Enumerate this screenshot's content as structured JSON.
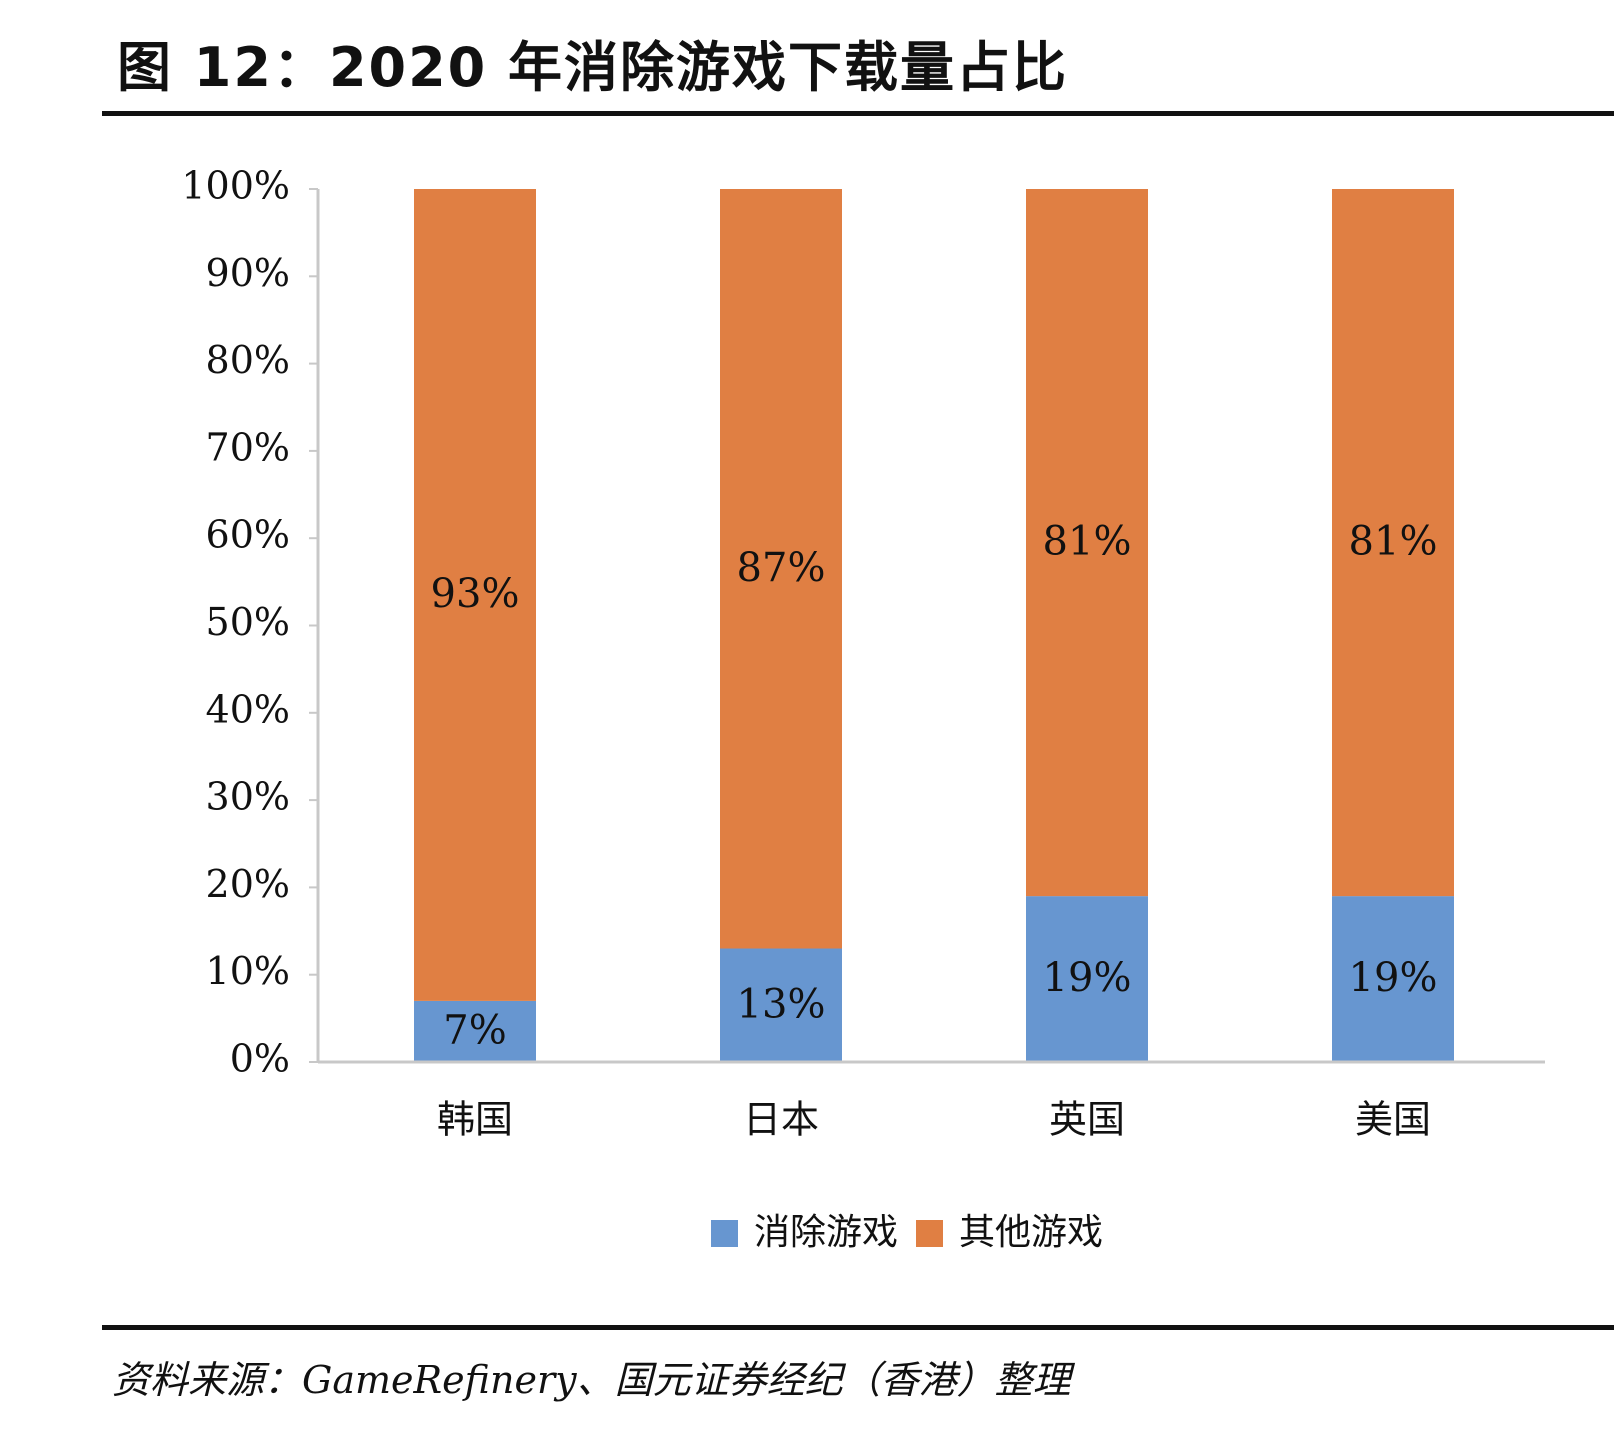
{
  "figure": {
    "title": "图 12：2020 年消除游戏下载量占比",
    "source": "资料来源：GameRefinery、国元证券经纪（香港）整理"
  },
  "chart_data": {
    "type": "bar",
    "stacked": true,
    "categories": [
      "韩国",
      "日本",
      "英国",
      "美国"
    ],
    "series": [
      {
        "name": "消除游戏",
        "values": [
          7,
          13,
          19,
          19
        ],
        "labels": [
          "7%",
          "13%",
          "19%",
          "19%"
        ],
        "color": "#6796d0"
      },
      {
        "name": "其他游戏",
        "values": [
          93,
          87,
          81,
          81
        ],
        "labels": [
          "93%",
          "87%",
          "81%",
          "81%"
        ],
        "color": "#e07f43"
      }
    ],
    "ylim": [
      0,
      100
    ],
    "yticks": [
      "0%",
      "10%",
      "20%",
      "30%",
      "40%",
      "50%",
      "60%",
      "70%",
      "80%",
      "90%",
      "100%"
    ],
    "xlabel": "",
    "ylabel": "",
    "grid": false,
    "legend_position": "bottom"
  }
}
